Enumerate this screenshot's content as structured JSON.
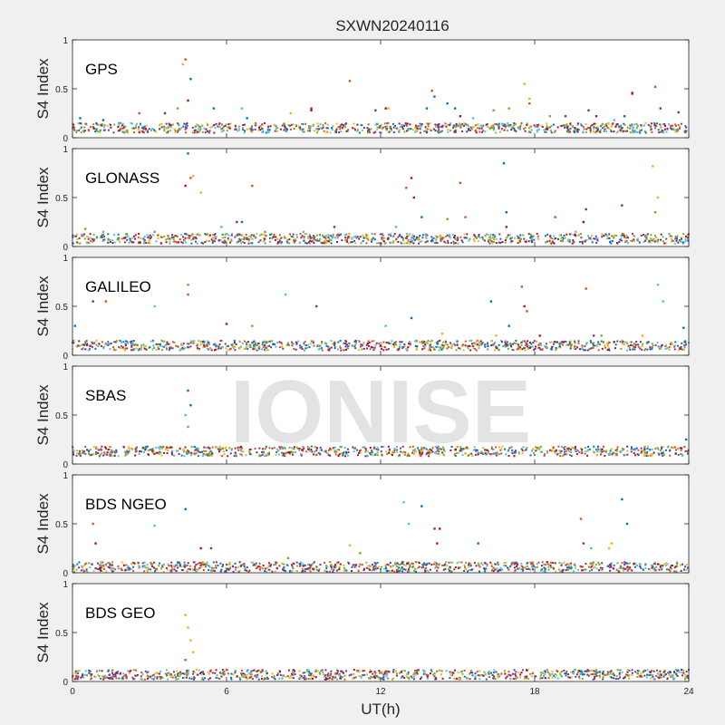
{
  "figure": {
    "title": "SXWN20240116",
    "xlabel": "UT(h)",
    "watermark": "IONISE"
  },
  "palette": [
    "#0072BD",
    "#D95319",
    "#EDB120",
    "#7E2F8E",
    "#77AC30",
    "#4DBEEE",
    "#A2142F"
  ],
  "chart_data": [
    {
      "type": "scatter",
      "panel_label": "GPS",
      "ylabel": "S4 Index",
      "xlim": [
        0,
        24
      ],
      "ylim": [
        0,
        1
      ],
      "xticks": [],
      "yticks": [
        0,
        0.5,
        1
      ],
      "baseline": 0.1,
      "series": [
        {
          "color": "#0072BD",
          "x": [
            0.3,
            1.2,
            4.6,
            5.5,
            6.8,
            13.8,
            14.1,
            14.6,
            14.9,
            21.5
          ],
          "y": [
            0.2,
            0.18,
            0.6,
            0.3,
            0.2,
            0.3,
            0.42,
            0.35,
            0.3,
            0.22
          ]
        },
        {
          "color": "#D95319",
          "x": [
            2.6,
            4.4,
            10.8,
            14.0,
            17.8,
            21.8,
            22.7
          ],
          "y": [
            0.25,
            0.8,
            0.58,
            0.48,
            0.35,
            0.46,
            0.52
          ]
        },
        {
          "color": "#EDB120",
          "x": [
            4.3,
            8.5,
            12.3,
            17.6,
            17.8
          ],
          "y": [
            0.75,
            0.25,
            0.3,
            0.55,
            0.4
          ]
        },
        {
          "color": "#7E2F8E",
          "x": [
            3.6,
            9.3,
            11.8,
            19.2,
            20.1,
            22.9,
            23.6
          ],
          "y": [
            0.25,
            0.3,
            0.28,
            0.22,
            0.28,
            0.3,
            0.26
          ]
        },
        {
          "color": "#77AC30",
          "x": [
            4.1,
            16.4,
            17.0,
            18.6
          ],
          "y": [
            0.3,
            0.28,
            0.3,
            0.22
          ]
        },
        {
          "color": "#4DBEEE",
          "x": [
            1.8,
            6.6,
            15.6,
            21.1
          ],
          "y": [
            0.15,
            0.3,
            0.2,
            0.18
          ]
        },
        {
          "color": "#A2142F",
          "x": [
            4.5,
            9.3,
            12.2,
            15.1,
            20.4,
            21.8
          ],
          "y": [
            0.38,
            0.28,
            0.3,
            0.22,
            0.22,
            0.45
          ]
        }
      ]
    },
    {
      "type": "scatter",
      "panel_label": "GLONASS",
      "ylabel": "S4 Index",
      "xlim": [
        0,
        24
      ],
      "ylim": [
        0,
        1
      ],
      "xticks": [],
      "yticks": [
        0,
        0.5,
        1
      ],
      "baseline": 0.08,
      "series": [
        {
          "color": "#0072BD",
          "x": [
            4.5,
            6.6,
            13.6,
            16.8,
            16.9
          ],
          "y": [
            0.95,
            0.25,
            0.3,
            0.85,
            0.35
          ]
        },
        {
          "color": "#D95319",
          "x": [
            4.6,
            7.0,
            13.0,
            15.1,
            15.3,
            18.8
          ],
          "y": [
            0.7,
            0.62,
            0.6,
            0.65,
            0.3,
            0.3
          ]
        },
        {
          "color": "#EDB120",
          "x": [
            4.7,
            5.0,
            22.6,
            22.8
          ],
          "y": [
            0.72,
            0.55,
            0.82,
            0.5
          ]
        },
        {
          "color": "#7E2F8E",
          "x": [
            6.4,
            10.2,
            20.0,
            21.4
          ],
          "y": [
            0.25,
            0.2,
            0.38,
            0.42
          ]
        },
        {
          "color": "#77AC30",
          "x": [
            0.5,
            3.2,
            7.5,
            14.6,
            22.7
          ],
          "y": [
            0.18,
            0.15,
            0.15,
            0.28,
            0.35
          ]
        },
        {
          "color": "#4DBEEE",
          "x": [
            1.2,
            5.8,
            9.0,
            12.6,
            19.6
          ],
          "y": [
            0.15,
            0.2,
            0.15,
            0.2,
            0.15
          ]
        },
        {
          "color": "#A2142F",
          "x": [
            4.4,
            13.2,
            13.3,
            16.9,
            19.9
          ],
          "y": [
            0.62,
            0.7,
            0.5,
            0.2,
            0.25
          ]
        }
      ]
    },
    {
      "type": "scatter",
      "panel_label": "GALILEO",
      "ylabel": "S4 Index",
      "xlim": [
        0,
        24
      ],
      "ylim": [
        0,
        1
      ],
      "xticks": [],
      "yticks": [
        0,
        0.5,
        1
      ],
      "baseline": 0.1,
      "series": [
        {
          "color": "#0072BD",
          "x": [
            0.1,
            13.2,
            16.3,
            17.0,
            23.8
          ],
          "y": [
            0.3,
            0.38,
            0.55,
            0.3,
            0.28
          ]
        },
        {
          "color": "#D95319",
          "x": [
            1.3,
            4.5,
            17.5,
            17.7,
            20.0
          ],
          "y": [
            0.55,
            0.62,
            0.7,
            0.45,
            0.68
          ]
        },
        {
          "color": "#EDB120",
          "x": [
            14.4,
            16.5,
            22.2
          ],
          "y": [
            0.22,
            0.2,
            0.2
          ]
        },
        {
          "color": "#7E2F8E",
          "x": [
            0.8,
            9.5,
            20.3
          ],
          "y": [
            0.55,
            0.5,
            0.2
          ]
        },
        {
          "color": "#77AC30",
          "x": [
            4.5,
            7.0,
            20.6
          ],
          "y": [
            0.72,
            0.3,
            0.2
          ]
        },
        {
          "color": "#4DBEEE",
          "x": [
            3.2,
            8.3,
            12.2,
            22.8,
            23.0
          ],
          "y": [
            0.5,
            0.62,
            0.3,
            0.72,
            0.55
          ]
        },
        {
          "color": "#A2142F",
          "x": [
            6.0,
            11.5,
            17.6,
            18.2
          ],
          "y": [
            0.32,
            0.12,
            0.5,
            0.2
          ]
        }
      ]
    },
    {
      "type": "scatter",
      "panel_label": "SBAS",
      "ylabel": "S4 Index",
      "xlim": [
        0,
        24
      ],
      "ylim": [
        0,
        1
      ],
      "xticks": [],
      "yticks": [
        0,
        0.5,
        1
      ],
      "baseline": 0.13,
      "series": [
        {
          "color": "#0072BD",
          "x": [
            4.5,
            4.6,
            23.9
          ],
          "y": [
            0.75,
            0.6,
            0.25
          ]
        },
        {
          "color": "#77AC30",
          "x": [
            4.5
          ],
          "y": [
            0.38
          ]
        },
        {
          "color": "#4DBEEE",
          "x": [
            4.4
          ],
          "y": [
            0.5
          ]
        }
      ]
    },
    {
      "type": "scatter",
      "panel_label": "BDS NGEO",
      "ylabel": "S4 Index",
      "xlim": [
        0,
        24
      ],
      "ylim": [
        0,
        1
      ],
      "xticks": [],
      "yticks": [
        0,
        0.5,
        1
      ],
      "baseline": 0.06,
      "series": [
        {
          "color": "#0072BD",
          "x": [
            4.4,
            13.6,
            15.8,
            21.4,
            21.6
          ],
          "y": [
            0.65,
            0.68,
            0.3,
            0.75,
            0.5
          ]
        },
        {
          "color": "#D95319",
          "x": [
            0.8,
            19.8
          ],
          "y": [
            0.5,
            0.55
          ]
        },
        {
          "color": "#EDB120",
          "x": [
            10.8,
            20.9,
            21.0
          ],
          "y": [
            0.28,
            0.25,
            0.3
          ]
        },
        {
          "color": "#7E2F8E",
          "x": [
            5.4,
            14.1,
            19.9
          ],
          "y": [
            0.25,
            0.45,
            0.3
          ]
        },
        {
          "color": "#77AC30",
          "x": [
            8.4,
            11.2
          ],
          "y": [
            0.15,
            0.2
          ]
        },
        {
          "color": "#4DBEEE",
          "x": [
            3.2,
            12.9,
            13.1,
            20.2
          ],
          "y": [
            0.48,
            0.72,
            0.5,
            0.25
          ]
        },
        {
          "color": "#A2142F",
          "x": [
            0.9,
            5.0,
            14.3,
            14.2
          ],
          "y": [
            0.3,
            0.25,
            0.45,
            0.3
          ]
        }
      ]
    },
    {
      "type": "scatter",
      "panel_label": "BDS GEO",
      "ylabel": "S4 Index",
      "xlim": [
        0,
        24
      ],
      "ylim": [
        0,
        1
      ],
      "xticks": [
        0,
        6,
        12,
        18,
        24
      ],
      "yticks": [
        0,
        0.5,
        1
      ],
      "baseline": 0.07,
      "series": [
        {
          "color": "#EDB120",
          "x": [
            4.4,
            4.5,
            4.6,
            4.7
          ],
          "y": [
            0.68,
            0.55,
            0.42,
            0.3
          ]
        },
        {
          "color": "#D95319",
          "x": [
            4.4,
            6.0
          ],
          "y": [
            0.22,
            0.12
          ]
        }
      ]
    }
  ]
}
